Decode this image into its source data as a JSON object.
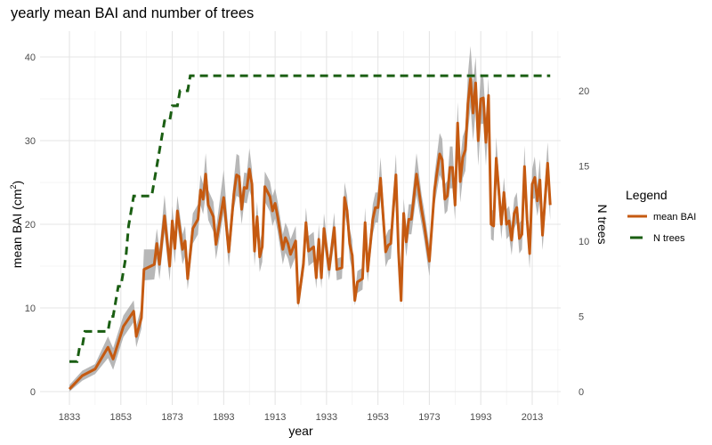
{
  "chart_data": {
    "type": "line",
    "title": "yearly mean BAI and number of trees",
    "xlabel": "year",
    "ylabel": "mean BAI (cm²)",
    "ylabel_base": "mean BAI (cm",
    "ylabel_sup": "2",
    "ylabel_end": ")",
    "y2label": "N trees",
    "xlim": [
      1833,
      2020
    ],
    "ylim": [
      0,
      42
    ],
    "y2lim": [
      0,
      23.5
    ],
    "x_ticks": [
      "1833",
      "1853",
      "1873",
      "1893",
      "1913",
      "1933",
      "1953",
      "1973",
      "1993",
      "2013"
    ],
    "y_ticks": [
      "0",
      "10",
      "20",
      "30",
      "40"
    ],
    "y2_ticks": [
      "0",
      "5",
      "10",
      "15",
      "20"
    ],
    "grid": true,
    "legend": {
      "title": "Legend",
      "position": "right",
      "items": [
        {
          "label": "mean BAI",
          "color": "#c55a11",
          "style": "solid"
        },
        {
          "label": "N trees",
          "color": "#1a5e12",
          "style": "dashed"
        }
      ]
    },
    "ribbon_color": "#b3b3b3",
    "series": [
      {
        "name": "mean BAI",
        "axis": "left",
        "color": "#c55a11",
        "columns": [
          "year",
          "mean",
          "lower",
          "upper"
        ],
        "points": [
          [
            1833,
            0.3,
            0,
            0.8
          ],
          [
            1838,
            1.9,
            1.3,
            2.5
          ],
          [
            1843,
            2.7,
            2.1,
            3.3
          ],
          [
            1848,
            5.3,
            4.0,
            6.6
          ],
          [
            1850,
            3.9,
            2.6,
            5.2
          ],
          [
            1854,
            7.8,
            6.5,
            9.1
          ],
          [
            1858,
            9.6,
            8.3,
            10.9
          ],
          [
            1859,
            6.6,
            5.3,
            7.9
          ],
          [
            1861,
            8.8,
            7.5,
            10.1
          ],
          [
            1862,
            14.6,
            13.3,
            17
          ],
          [
            1866,
            15.2,
            13.4,
            17
          ],
          [
            1867,
            17.7,
            15.9,
            19.5
          ],
          [
            1868,
            15.2,
            13.4,
            17
          ],
          [
            1870,
            21,
            19,
            23.5
          ],
          [
            1872,
            15,
            13.2,
            16.8
          ],
          [
            1873,
            20.4,
            18.6,
            22.2
          ],
          [
            1874,
            17.1,
            15.3,
            18.9
          ],
          [
            1875,
            21.6,
            19.8,
            23.4
          ],
          [
            1877,
            17,
            15.2,
            18.8
          ],
          [
            1878,
            18,
            16.2,
            19.8
          ],
          [
            1879,
            13.5,
            12.2,
            14.8
          ],
          [
            1881,
            19.5,
            17.7,
            21.3
          ],
          [
            1883,
            20.6,
            18.8,
            22.4
          ],
          [
            1884,
            24.1,
            22.3,
            25.9
          ],
          [
            1885,
            23,
            21.2,
            24.8
          ],
          [
            1886,
            26,
            23.5,
            28.5
          ],
          [
            1887,
            22.3,
            20.5,
            24.1
          ],
          [
            1889,
            20.9,
            19.1,
            22.7
          ],
          [
            1890,
            17.6,
            15.8,
            19.4
          ],
          [
            1893,
            23.2,
            21.4,
            26.5
          ],
          [
            1895,
            16.7,
            14.9,
            18.5
          ],
          [
            1897,
            23.7,
            21.9,
            25.5
          ],
          [
            1898,
            25.9,
            23.4,
            28.4
          ],
          [
            1899,
            25.7,
            23.2,
            28.2
          ],
          [
            1900,
            21.8,
            20,
            23.6
          ],
          [
            1901,
            24.4,
            22.6,
            26.2
          ],
          [
            1902,
            24.3,
            22.5,
            26.1
          ],
          [
            1903,
            26.6,
            24.1,
            29.1
          ],
          [
            1904,
            24.8,
            23,
            26.6
          ],
          [
            1905,
            16.8,
            15,
            18.6
          ],
          [
            1906,
            20.9,
            19.1,
            22.7
          ],
          [
            1907,
            16.1,
            14.3,
            17.9
          ],
          [
            1908,
            17.3,
            15.5,
            19.1
          ],
          [
            1909,
            24.5,
            22.7,
            26.3
          ],
          [
            1911,
            23.3,
            21.5,
            25.1
          ],
          [
            1912,
            21.6,
            19.8,
            23.4
          ],
          [
            1913,
            22.5,
            20.7,
            24.3
          ],
          [
            1914,
            20.9,
            19.1,
            22.7
          ],
          [
            1916,
            17,
            15.2,
            18.8
          ],
          [
            1917,
            18.4,
            16.6,
            20.2
          ],
          [
            1918,
            17.7,
            15.9,
            19.5
          ],
          [
            1919,
            16.4,
            14.6,
            18.2
          ],
          [
            1921,
            18,
            16.2,
            19.8
          ],
          [
            1922,
            10.6,
            10,
            11.9
          ],
          [
            1924,
            15.2,
            13.9,
            16.5
          ],
          [
            1925,
            20.2,
            18.4,
            22
          ],
          [
            1926,
            16.8,
            15,
            18.6
          ],
          [
            1928,
            17.3,
            15.5,
            19.1
          ],
          [
            1929,
            13.6,
            12.3,
            14.9
          ],
          [
            1930,
            18.2,
            16.4,
            20
          ],
          [
            1931,
            13.6,
            12.3,
            14.9
          ],
          [
            1932,
            19.5,
            17.7,
            21.3
          ],
          [
            1934,
            14.6,
            13.3,
            15.9
          ],
          [
            1936,
            19.6,
            17.8,
            21.4
          ],
          [
            1937,
            14.6,
            13.3,
            15.9
          ],
          [
            1939,
            14.8,
            13.5,
            16.1
          ],
          [
            1940,
            23.2,
            21.4,
            25
          ],
          [
            1941,
            21.6,
            19.8,
            23.4
          ],
          [
            1942,
            17.7,
            15.9,
            19.5
          ],
          [
            1943,
            16.3,
            14.5,
            18.1
          ],
          [
            1944,
            10.9,
            10.3,
            11.6
          ],
          [
            1945,
            13.1,
            11.8,
            14.4
          ],
          [
            1946,
            13.3,
            12,
            14.6
          ],
          [
            1947,
            13.5,
            12.2,
            14.8
          ],
          [
            1948,
            20.2,
            18.4,
            22
          ],
          [
            1949,
            14.4,
            13.1,
            15.7
          ],
          [
            1951,
            20.6,
            18.8,
            22.4
          ],
          [
            1952,
            22,
            20.2,
            23.8
          ],
          [
            1953,
            22,
            20.2,
            23.8
          ],
          [
            1954,
            25.5,
            23,
            28
          ],
          [
            1956,
            16.7,
            14.9,
            18.5
          ],
          [
            1957,
            17.5,
            15.7,
            19.3
          ],
          [
            1958,
            17.7,
            15.9,
            19.5
          ],
          [
            1959,
            22,
            20.2,
            23.8
          ],
          [
            1960,
            25.9,
            23.4,
            28.4
          ],
          [
            1961,
            16.7,
            14.9,
            18.5
          ],
          [
            1962,
            10.9,
            10.3,
            11.6
          ],
          [
            1963,
            21.3,
            19.5,
            23.1
          ],
          [
            1964,
            17.9,
            16.1,
            19.7
          ],
          [
            1965,
            20.6,
            18.8,
            22.4
          ],
          [
            1966,
            20.6,
            18.8,
            22.4
          ],
          [
            1968,
            26,
            23.5,
            28.5
          ],
          [
            1970,
            21.7,
            19.9,
            23.5
          ],
          [
            1971,
            19.9,
            18.1,
            21.7
          ],
          [
            1973,
            15.6,
            13.8,
            17.4
          ],
          [
            1975,
            24.1,
            22.3,
            25.9
          ],
          [
            1977,
            28.4,
            25.9,
            30.9
          ],
          [
            1978,
            27.7,
            25.2,
            30.2
          ],
          [
            1979,
            23,
            21.2,
            24.8
          ],
          [
            1980,
            23.4,
            21.6,
            25.2
          ],
          [
            1981,
            26.8,
            24.3,
            29.3
          ],
          [
            1982,
            26.8,
            24.3,
            29.3
          ],
          [
            1983,
            22.3,
            20.5,
            24.1
          ],
          [
            1984,
            32.1,
            29.6,
            34.6
          ],
          [
            1985,
            25.1,
            22.6,
            27.6
          ],
          [
            1986,
            28,
            25.5,
            30.5
          ],
          [
            1987,
            28.9,
            26.4,
            31.4
          ],
          [
            1988,
            34.4,
            31,
            38
          ],
          [
            1989,
            37.4,
            34,
            41.3
          ],
          [
            1990,
            33.3,
            30,
            37
          ],
          [
            1991,
            36.9,
            33.5,
            40
          ],
          [
            1992,
            30,
            27,
            33
          ],
          [
            1993,
            35,
            32,
            38
          ],
          [
            1994,
            35.1,
            32,
            37.5
          ],
          [
            1995,
            29.8,
            27,
            32.6
          ],
          [
            1996,
            35.4,
            32.5,
            37.5
          ],
          [
            1997,
            20,
            18.2,
            21.8
          ],
          [
            1998,
            19.8,
            18,
            21.6
          ],
          [
            1999,
            27.9,
            25.4,
            30.4
          ],
          [
            2000,
            24.1,
            22.3,
            25.9
          ],
          [
            2001,
            20,
            18.2,
            21.8
          ],
          [
            2002,
            23.8,
            22,
            25.6
          ],
          [
            2003,
            20,
            18.2,
            21.8
          ],
          [
            2004,
            20.4,
            18.6,
            22.2
          ],
          [
            2005,
            18.1,
            16.3,
            19.9
          ],
          [
            2006,
            21.3,
            19.5,
            23.1
          ],
          [
            2007,
            22,
            20.2,
            23.8
          ],
          [
            2008,
            18.3,
            16.5,
            20.1
          ],
          [
            2009,
            18.8,
            17,
            20.6
          ],
          [
            2010,
            26.9,
            24.4,
            29.4
          ],
          [
            2011,
            20.6,
            18.8,
            22.4
          ],
          [
            2012,
            16.5,
            14.7,
            18.3
          ],
          [
            2013,
            24.8,
            23,
            26.6
          ],
          [
            2014,
            25.6,
            23.1,
            28.1
          ],
          [
            2015,
            22.8,
            21,
            24.6
          ],
          [
            2016,
            25.3,
            22.8,
            27.8
          ],
          [
            2017,
            18.7,
            16.9,
            20.5
          ],
          [
            2019,
            27.3,
            24.8,
            29.8
          ],
          [
            2020,
            22.3,
            20.5,
            24.1
          ]
        ]
      },
      {
        "name": "N trees",
        "axis": "right",
        "color": "#1a5e12",
        "columns": [
          "year",
          "n"
        ],
        "points": [
          [
            1833,
            2
          ],
          [
            1836,
            2
          ],
          [
            1837,
            3
          ],
          [
            1838,
            3
          ],
          [
            1839,
            4
          ],
          [
            1847,
            4
          ],
          [
            1848,
            4
          ],
          [
            1849,
            5
          ],
          [
            1850,
            5
          ],
          [
            1851,
            6
          ],
          [
            1852,
            7
          ],
          [
            1853,
            7
          ],
          [
            1854,
            8
          ],
          [
            1855,
            9
          ],
          [
            1856,
            11
          ],
          [
            1857,
            12
          ],
          [
            1858,
            13
          ],
          [
            1865,
            13
          ],
          [
            1866,
            14
          ],
          [
            1867,
            15
          ],
          [
            1868,
            16
          ],
          [
            1869,
            17
          ],
          [
            1870,
            18
          ],
          [
            1872,
            18
          ],
          [
            1873,
            19
          ],
          [
            1875,
            19
          ],
          [
            1876,
            20
          ],
          [
            1879,
            20
          ],
          [
            1880,
            21
          ],
          [
            2020,
            21
          ]
        ]
      }
    ]
  }
}
